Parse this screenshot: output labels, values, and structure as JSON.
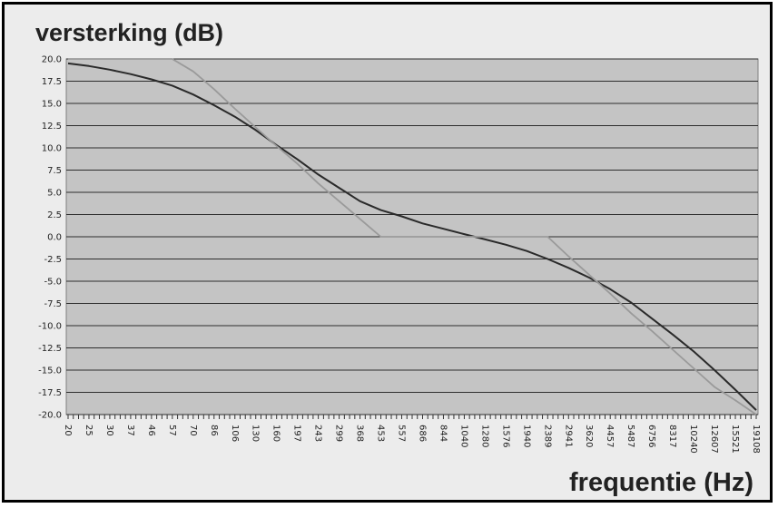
{
  "chart_data": {
    "type": "line",
    "ylabel": "versterking (dB)",
    "xlabel": "frequentie (Hz)",
    "ylim": [
      -20,
      20
    ],
    "y_ticks": [
      "20.0",
      "17.5",
      "15.0",
      "12.5",
      "10.0",
      "7.5",
      "5.0",
      "2.5",
      "0.0",
      "-2.5",
      "-5.0",
      "-7.5",
      "-10.0",
      "-12.5",
      "-15.0",
      "-17.5",
      "-20.0"
    ],
    "grid": true,
    "legend": "none",
    "x_tick_labels": [
      "20",
      "25",
      "30",
      "37",
      "46",
      "57",
      "70",
      "86",
      "106",
      "130",
      "160",
      "197",
      "243",
      "299",
      "368",
      "453",
      "557",
      "686",
      "844",
      "1040",
      "1280",
      "1576",
      "1940",
      "2389",
      "2941",
      "3620",
      "4457",
      "5487",
      "6756",
      "8317",
      "10240",
      "12607",
      "15521",
      "19108"
    ],
    "series": [
      {
        "color": "#2a2a2a",
        "values": [
          19.5,
          19.2,
          18.8,
          18.3,
          17.7,
          17.0,
          16.0,
          14.8,
          13.5,
          12.0,
          10.3,
          8.7,
          7.0,
          5.5,
          4.0,
          3.0,
          2.3,
          1.5,
          0.9,
          0.3,
          -0.3,
          -0.9,
          -1.6,
          -2.5,
          -3.5,
          -4.6,
          -5.9,
          -7.4,
          -9.2,
          -11.0,
          -12.9,
          -15.0,
          -17.2,
          -19.5
        ]
      },
      {
        "color": "#9a9a9a",
        "values": [
          20.0,
          20.0,
          20.0,
          20.0,
          20.0,
          20.0,
          18.6,
          16.6,
          14.4,
          12.3,
          10.2,
          8.2,
          6.0,
          4.0,
          2.0,
          0.0,
          0.0,
          0.0,
          0.0,
          0.0,
          0.0,
          0.0,
          0.0,
          0.0,
          -2.2,
          -4.3,
          -6.4,
          -8.6,
          -10.6,
          -12.7,
          -14.8,
          -16.9,
          -18.4,
          -20.0
        ]
      }
    ]
  }
}
